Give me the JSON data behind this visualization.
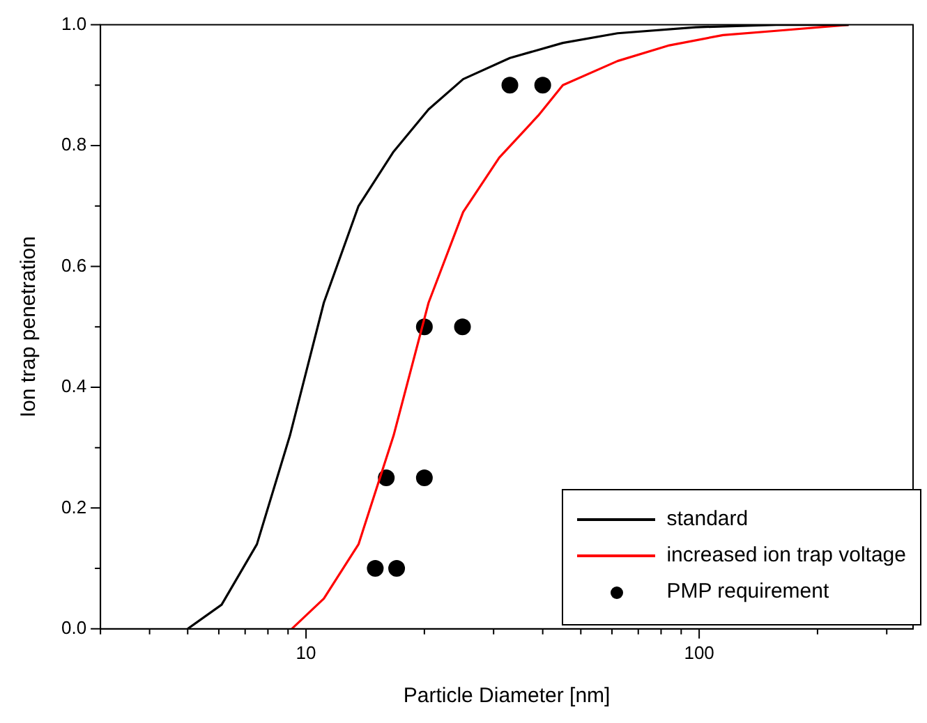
{
  "chart_data": {
    "type": "line",
    "xlabel": "Particle Diameter [nm]",
    "ylabel": "Ion trap penetration",
    "log": "x",
    "grid": false,
    "legend": "bottom right",
    "xlim": [
      3,
      350
    ],
    "ylim": [
      0,
      1
    ],
    "xticks": [
      {
        "value": 3,
        "label": null
      },
      {
        "value": 4,
        "label": null
      },
      {
        "value": 5,
        "label": null
      },
      {
        "value": 6,
        "label": null
      },
      {
        "value": 7,
        "label": null
      },
      {
        "value": 8,
        "label": null
      },
      {
        "value": 9,
        "label": null
      },
      10,
      {
        "value": 20,
        "label": null
      },
      {
        "value": 30,
        "label": null
      },
      {
        "value": 40,
        "label": null
      },
      {
        "value": 50,
        "label": null
      },
      {
        "value": 60,
        "label": null
      },
      {
        "value": 70,
        "label": null
      },
      {
        "value": 80,
        "label": null
      },
      {
        "value": 90,
        "label": null
      },
      100,
      {
        "value": 200,
        "label": null
      },
      {
        "value": 300,
        "label": null
      }
    ],
    "yticks": [
      {
        "value": 0,
        "label": "0.0"
      },
      {
        "value": 0.1,
        "label": null
      },
      {
        "value": 0.2,
        "label": "0.2"
      },
      {
        "value": 0.3,
        "label": null
      },
      {
        "value": 0.4,
        "label": "0.4"
      },
      {
        "value": 0.5,
        "label": null
      },
      {
        "value": 0.6,
        "label": "0.6"
      },
      {
        "value": 0.7,
        "label": null
      },
      {
        "value": 0.8,
        "label": "0.8"
      },
      {
        "value": 0.9,
        "label": null
      },
      {
        "value": 1,
        "label": "1.0"
      }
    ],
    "series": [
      {
        "name": "standard",
        "type": "line",
        "color": "#000000",
        "marker": "none",
        "line_style": "solid",
        "x": [
          5,
          6.1,
          7.5,
          9.1,
          11.1,
          13.6,
          16.7,
          20.5,
          25.1,
          33,
          45,
          62,
          98,
          157,
          240
        ],
        "values": [
          0,
          0.04,
          0.14,
          0.32,
          0.54,
          0.7,
          0.79,
          0.86,
          0.91,
          0.945,
          0.97,
          0.986,
          0.996,
          1,
          1
        ]
      },
      {
        "name": "increased ion trap voltage",
        "type": "line",
        "color": "#ff0000",
        "marker": "none",
        "line_style": "solid",
        "x": [
          9.2,
          11.1,
          13.6,
          16.7,
          20.5,
          25.1,
          31,
          39,
          45,
          62,
          84,
          115,
          157,
          240
        ],
        "values": [
          0,
          0.05,
          0.14,
          0.32,
          0.54,
          0.69,
          0.78,
          0.85,
          0.9,
          0.94,
          0.966,
          0.983,
          0.99,
          1
        ]
      },
      {
        "name": "PMP requirement",
        "type": "scatter",
        "color": "#000000",
        "marker": "circle",
        "x": [
          15,
          17,
          16,
          20,
          20,
          25,
          33,
          40
        ],
        "values": [
          0.1,
          0.1,
          0.25,
          0.25,
          0.5,
          0.5,
          0.9,
          0.9
        ]
      }
    ]
  }
}
